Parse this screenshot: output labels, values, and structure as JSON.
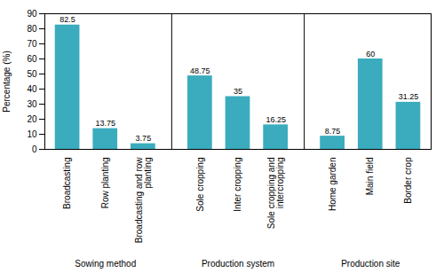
{
  "chart_data": {
    "type": "bar",
    "categories": [
      "Broadcasting",
      "Row planting",
      "Broadcasting and row\nplanting",
      "Sole cropping",
      "Inter cropping",
      "Sole cropping and\nintercropping",
      "Home garden",
      "Main field",
      "Border crop"
    ],
    "values": [
      82.5,
      13.75,
      3.75,
      48.75,
      35.0,
      16.25,
      8.75,
      60.0,
      31.25
    ],
    "groups": [
      "Sowing method",
      "Sowing method",
      "Sowing method",
      "Production system",
      "Production system",
      "Production system",
      "Production site",
      "Production site",
      "Production site"
    ],
    "color": "#3aacbe",
    "ylabel": "Percentage (%)",
    "ylim": [
      0,
      90
    ],
    "yticks": [
      0,
      10,
      20,
      30,
      40,
      50,
      60,
      70,
      80,
      90
    ],
    "data_labels": true,
    "grid": false
  }
}
